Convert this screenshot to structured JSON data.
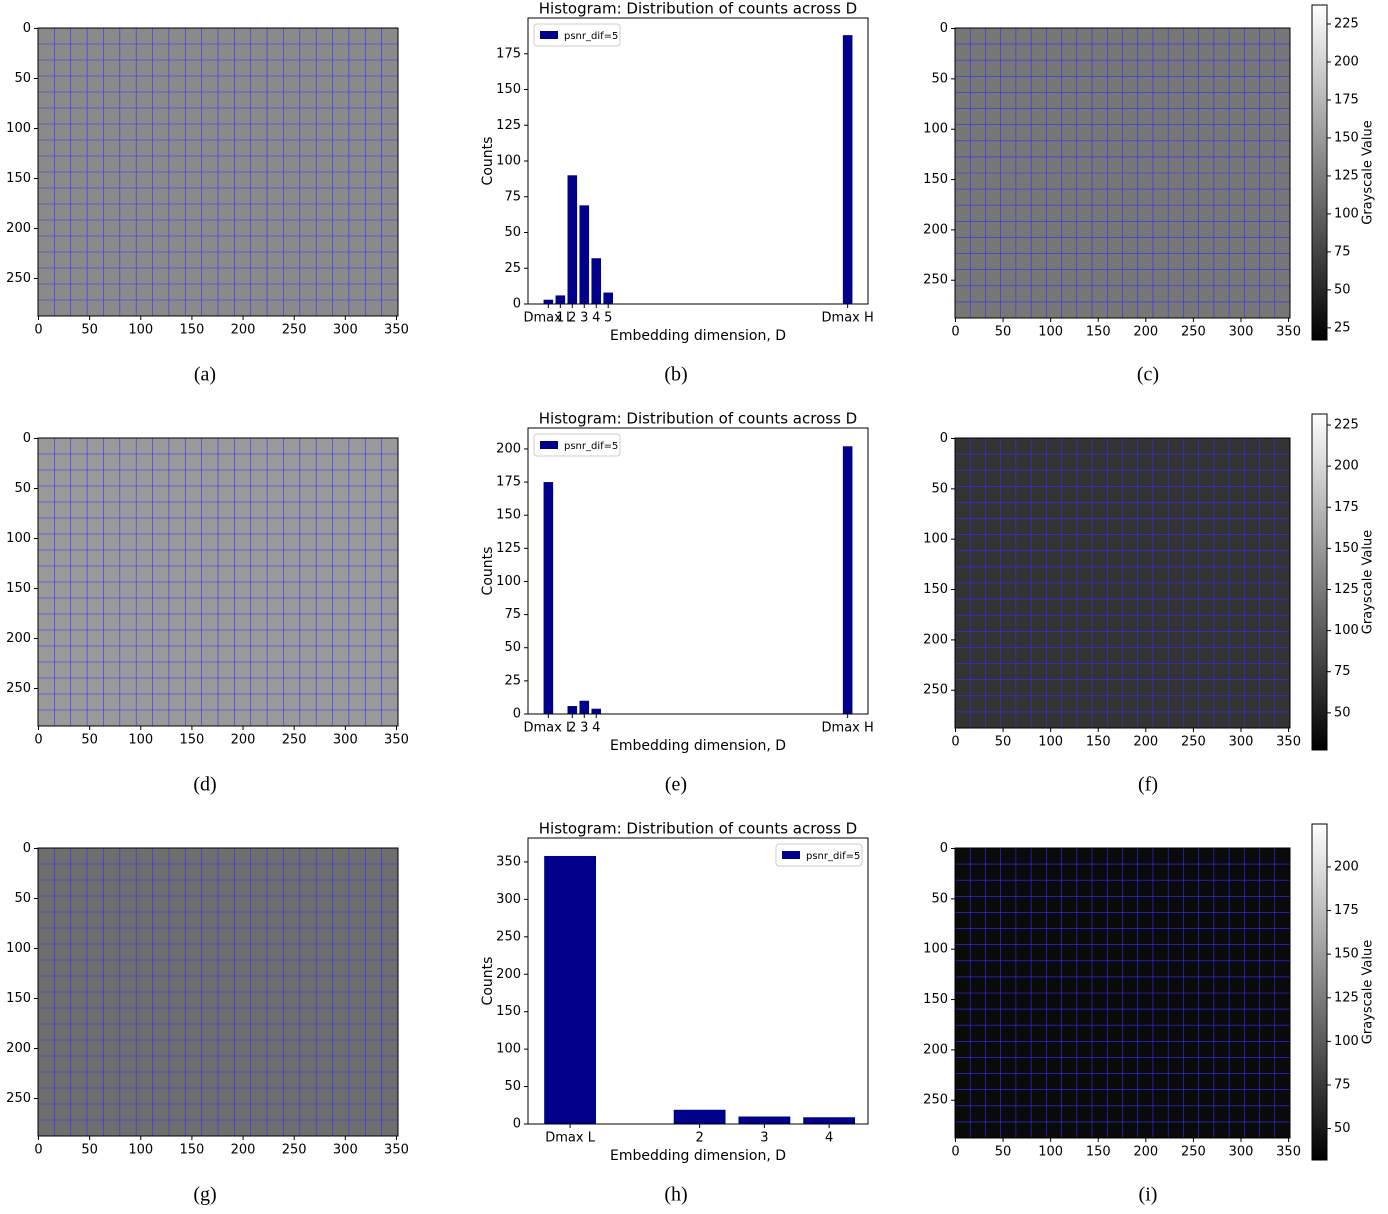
{
  "chart_data": [
    {
      "type": "image",
      "caption": "(a)",
      "color": "#8a8a8a",
      "xlim": [
        -0.5,
        351.5
      ],
      "ylim": [
        287.5,
        -0.5
      ],
      "xticks": [
        0,
        50,
        100,
        150,
        200,
        250,
        300,
        350
      ],
      "yticks": [
        0,
        50,
        100,
        150,
        200,
        250
      ]
    },
    {
      "type": "bar",
      "caption": "(b)",
      "title": "Histogram: Distribution of counts across D",
      "xlabel": "Embedding dimension, D",
      "ylabel": "Counts",
      "legend": "upper left",
      "x": [
        0,
        1,
        2,
        3,
        4,
        5,
        25
      ],
      "series": [
        {
          "name": "psnr_dif=5",
          "color": "#00008b",
          "values": [
            3,
            6,
            90,
            69,
            32,
            8,
            188
          ]
        }
      ],
      "xlim": [
        -1.7,
        26.7
      ],
      "ylim": [
        0,
        200
      ],
      "xticks": [
        {
          "value": 0,
          "label": "Dmax L"
        },
        1,
        2,
        3,
        4,
        5,
        {
          "value": 25,
          "label": "Dmax H"
        }
      ],
      "yticks": [
        0,
        25,
        50,
        75,
        100,
        125,
        150,
        175
      ]
    },
    {
      "type": "heatmap",
      "caption": "(c)",
      "color": "#777777",
      "xlim": [
        -0.5,
        351.5
      ],
      "ylim": [
        287.5,
        -0.5
      ],
      "xticks": [
        0,
        50,
        100,
        150,
        200,
        250,
        300,
        350
      ],
      "yticks": [
        0,
        50,
        100,
        150,
        200,
        250
      ],
      "colorbar": {
        "label": "Grayscale Value",
        "lim": [
          17,
          237.5
        ],
        "ticks": [
          25,
          50,
          75,
          100,
          125,
          150,
          175,
          200,
          225
        ]
      }
    },
    {
      "type": "image",
      "caption": "(d)",
      "color": "#9a9a9a",
      "xlim": [
        -0.5,
        351.5
      ],
      "ylim": [
        287.5,
        -0.5
      ],
      "xticks": [
        0,
        50,
        100,
        150,
        200,
        250,
        300,
        350
      ],
      "yticks": [
        0,
        50,
        100,
        150,
        200,
        250
      ]
    },
    {
      "type": "bar",
      "caption": "(e)",
      "title": "Histogram: Distribution of counts across D",
      "xlabel": "Embedding dimension, D",
      "ylabel": "Counts",
      "legend": "upper left",
      "x": [
        0,
        2,
        3,
        4,
        25
      ],
      "series": [
        {
          "name": "psnr_dif=5",
          "color": "#00008b",
          "values": [
            175,
            6,
            10,
            4,
            202
          ]
        }
      ],
      "xlim": [
        -1.7,
        26.7
      ],
      "ylim": [
        0,
        215.8
      ],
      "xticks": [
        {
          "value": 0,
          "label": "Dmax L"
        },
        2,
        3,
        4,
        {
          "value": 25,
          "label": "Dmax H"
        }
      ],
      "yticks": [
        0,
        25,
        50,
        75,
        100,
        125,
        150,
        175,
        200
      ]
    },
    {
      "type": "heatmap",
      "caption": "(f)",
      "color": "#333333",
      "xlim": [
        -0.5,
        351.5
      ],
      "ylim": [
        287.5,
        -0.5
      ],
      "xticks": [
        0,
        50,
        100,
        150,
        200,
        250,
        300,
        350
      ],
      "yticks": [
        0,
        50,
        100,
        150,
        200,
        250
      ],
      "colorbar": {
        "label": "Grayscale Value",
        "lim": [
          27.4,
          231.7
        ],
        "ticks": [
          50,
          75,
          100,
          125,
          150,
          175,
          200,
          225
        ]
      }
    },
    {
      "type": "image",
      "caption": "(g)",
      "color": "#6e6e6e",
      "xlim": [
        -0.5,
        351.5
      ],
      "ylim": [
        287.5,
        -0.5
      ],
      "xticks": [
        0,
        50,
        100,
        150,
        200,
        250,
        300,
        350
      ],
      "yticks": [
        0,
        50,
        100,
        150,
        200,
        250
      ]
    },
    {
      "type": "bar",
      "caption": "(h)",
      "title": "Histogram: Distribution of counts across D",
      "xlabel": "Embedding dimension, D",
      "ylabel": "Counts",
      "legend": "upper right",
      "x": [
        0,
        2,
        3,
        4
      ],
      "series": [
        {
          "name": "psnr_dif=5",
          "color": "#00008b",
          "values": [
            358,
            19,
            10,
            9
          ]
        }
      ],
      "xlim": [
        -0.65,
        4.6
      ],
      "ylim": [
        0,
        382
      ],
      "xticks": [
        {
          "value": 0,
          "label": "Dmax L"
        },
        2,
        3,
        4
      ],
      "yticks": [
        0,
        50,
        100,
        150,
        200,
        250,
        300,
        350
      ]
    },
    {
      "type": "heatmap",
      "caption": "(i)",
      "color": "#0a0a0a",
      "xlim": [
        -0.5,
        351.5
      ],
      "ylim": [
        287.5,
        -0.5
      ],
      "xticks": [
        0,
        50,
        100,
        150,
        200,
        250,
        300,
        350
      ],
      "yticks": [
        0,
        50,
        100,
        150,
        200,
        250
      ],
      "colorbar": {
        "label": "Grayscale Value",
        "lim": [
          32,
          224.6
        ],
        "ticks": [
          50,
          75,
          100,
          125,
          150,
          175,
          200
        ]
      }
    }
  ]
}
